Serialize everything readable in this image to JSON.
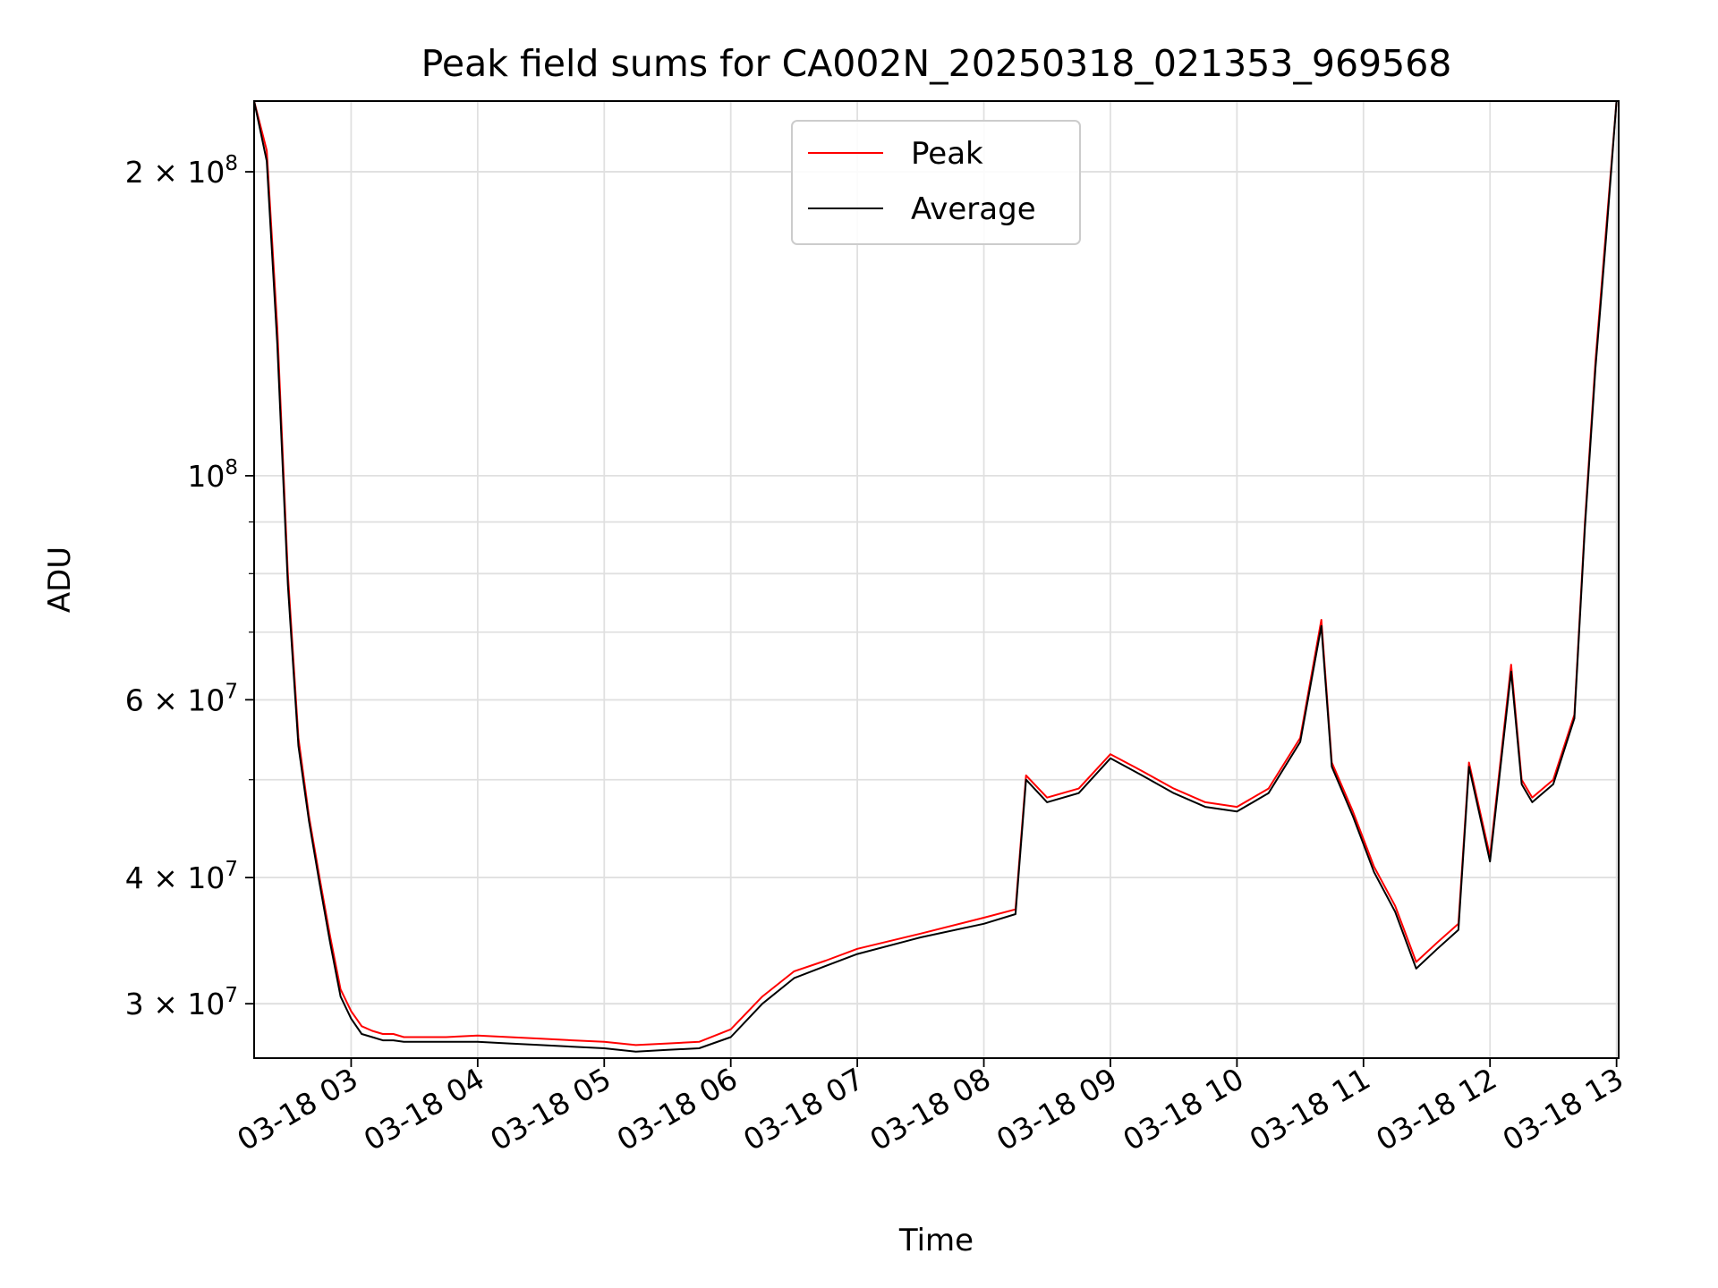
{
  "chart_data": {
    "type": "line",
    "title": "Peak field sums for CA002N_20250318_021353_969568",
    "xlabel": "Time",
    "ylabel": "ADU",
    "yscale": "log",
    "ylim": [
      26500000,
      235000000
    ],
    "xlim": [
      "2025-03-18 02:14",
      "2025-03-18 13:01"
    ],
    "grid": true,
    "legend_position": "upper center",
    "x_tick_labels": [
      "03-18 03",
      "03-18 04",
      "03-18 05",
      "03-18 06",
      "03-18 07",
      "03-18 08",
      "03-18 09",
      "03-18 10",
      "03-18 11",
      "03-18 12",
      "03-18 13"
    ],
    "y_ticks": [
      {
        "value": 30000000,
        "mantissa": "3",
        "exponent": "7"
      },
      {
        "value": 40000000,
        "mantissa": "4",
        "exponent": "7"
      },
      {
        "value": 60000000,
        "mantissa": "6",
        "exponent": "7"
      },
      {
        "value": 100000000,
        "mantissa": "",
        "exponent": "8"
      },
      {
        "value": 200000000,
        "mantissa": "2",
        "exponent": "8"
      }
    ],
    "series": [
      {
        "name": "Peak",
        "color": "#ff0000",
        "x": [
          "2025-03-18 02:14",
          "2025-03-18 02:20",
          "2025-03-18 02:25",
          "2025-03-18 02:30",
          "2025-03-18 02:35",
          "2025-03-18 02:40",
          "2025-03-18 02:45",
          "2025-03-18 02:50",
          "2025-03-18 02:55",
          "2025-03-18 03:00",
          "2025-03-18 03:05",
          "2025-03-18 03:10",
          "2025-03-18 03:15",
          "2025-03-18 03:20",
          "2025-03-18 03:25",
          "2025-03-18 03:35",
          "2025-03-18 03:45",
          "2025-03-18 04:00",
          "2025-03-18 04:15",
          "2025-03-18 04:30",
          "2025-03-18 04:45",
          "2025-03-18 05:00",
          "2025-03-18 05:15",
          "2025-03-18 05:30",
          "2025-03-18 05:45",
          "2025-03-18 06:00",
          "2025-03-18 06:15",
          "2025-03-18 06:30",
          "2025-03-18 06:45",
          "2025-03-18 07:00",
          "2025-03-18 07:30",
          "2025-03-18 08:00",
          "2025-03-18 08:15",
          "2025-03-18 08:20",
          "2025-03-18 08:30",
          "2025-03-18 08:45",
          "2025-03-18 09:00",
          "2025-03-18 09:15",
          "2025-03-18 09:30",
          "2025-03-18 09:45",
          "2025-03-18 10:00",
          "2025-03-18 10:15",
          "2025-03-18 10:30",
          "2025-03-18 10:40",
          "2025-03-18 10:45",
          "2025-03-18 10:55",
          "2025-03-18 11:05",
          "2025-03-18 11:15",
          "2025-03-18 11:25",
          "2025-03-18 11:35",
          "2025-03-18 11:45",
          "2025-03-18 11:50",
          "2025-03-18 12:00",
          "2025-03-18 12:10",
          "2025-03-18 12:15",
          "2025-03-18 12:20",
          "2025-03-18 12:30",
          "2025-03-18 12:40",
          "2025-03-18 12:45",
          "2025-03-18 12:50",
          "2025-03-18 12:55",
          "2025-03-18 13:00"
        ],
        "values": [
          235000000,
          210000000,
          140000000,
          80000000,
          55000000,
          46000000,
          40000000,
          35000000,
          31000000,
          29500000,
          28500000,
          28200000,
          28000000,
          28000000,
          27800000,
          27800000,
          27800000,
          27900000,
          27800000,
          27700000,
          27600000,
          27500000,
          27300000,
          27400000,
          27500000,
          28300000,
          30500000,
          32300000,
          33100000,
          34000000,
          35200000,
          36500000,
          37200000,
          50500000,
          48000000,
          49000000,
          53000000,
          51000000,
          49000000,
          47500000,
          47000000,
          49000000,
          55000000,
          72000000,
          52000000,
          46500000,
          41000000,
          37500000,
          33000000,
          34500000,
          36000000,
          52000000,
          42000000,
          65000000,
          50000000,
          48000000,
          50000000,
          58000000,
          90000000,
          130000000,
          175000000,
          235000000
        ]
      },
      {
        "name": "Average",
        "color": "#000000",
        "x": [
          "2025-03-18 02:14",
          "2025-03-18 02:20",
          "2025-03-18 02:25",
          "2025-03-18 02:30",
          "2025-03-18 02:35",
          "2025-03-18 02:40",
          "2025-03-18 02:45",
          "2025-03-18 02:50",
          "2025-03-18 02:55",
          "2025-03-18 03:00",
          "2025-03-18 03:05",
          "2025-03-18 03:10",
          "2025-03-18 03:15",
          "2025-03-18 03:20",
          "2025-03-18 03:25",
          "2025-03-18 03:35",
          "2025-03-18 03:45",
          "2025-03-18 04:00",
          "2025-03-18 04:15",
          "2025-03-18 04:30",
          "2025-03-18 04:45",
          "2025-03-18 05:00",
          "2025-03-18 05:15",
          "2025-03-18 05:30",
          "2025-03-18 05:45",
          "2025-03-18 06:00",
          "2025-03-18 06:15",
          "2025-03-18 06:30",
          "2025-03-18 06:45",
          "2025-03-18 07:00",
          "2025-03-18 07:30",
          "2025-03-18 08:00",
          "2025-03-18 08:15",
          "2025-03-18 08:20",
          "2025-03-18 08:30",
          "2025-03-18 08:45",
          "2025-03-18 09:00",
          "2025-03-18 09:15",
          "2025-03-18 09:30",
          "2025-03-18 09:45",
          "2025-03-18 10:00",
          "2025-03-18 10:15",
          "2025-03-18 10:30",
          "2025-03-18 10:40",
          "2025-03-18 10:45",
          "2025-03-18 10:55",
          "2025-03-18 11:05",
          "2025-03-18 11:15",
          "2025-03-18 11:25",
          "2025-03-18 11:35",
          "2025-03-18 11:45",
          "2025-03-18 11:50",
          "2025-03-18 12:00",
          "2025-03-18 12:10",
          "2025-03-18 12:15",
          "2025-03-18 12:20",
          "2025-03-18 12:30",
          "2025-03-18 12:40",
          "2025-03-18 12:45",
          "2025-03-18 12:50",
          "2025-03-18 12:55",
          "2025-03-18 13:00"
        ],
        "values": [
          235000000,
          205000000,
          135000000,
          78000000,
          54000000,
          45500000,
          39500000,
          34500000,
          30500000,
          29000000,
          28000000,
          27800000,
          27600000,
          27600000,
          27500000,
          27500000,
          27500000,
          27500000,
          27400000,
          27300000,
          27200000,
          27100000,
          26900000,
          27000000,
          27100000,
          27800000,
          30000000,
          31800000,
          32700000,
          33600000,
          34900000,
          36000000,
          36800000,
          50000000,
          47500000,
          48500000,
          52500000,
          50500000,
          48500000,
          47000000,
          46500000,
          48500000,
          54500000,
          71000000,
          51500000,
          46000000,
          40500000,
          37000000,
          32500000,
          34000000,
          35500000,
          51500000,
          41500000,
          64000000,
          49500000,
          47500000,
          49500000,
          57500000,
          89000000,
          128000000,
          172000000,
          235000000
        ]
      }
    ]
  }
}
